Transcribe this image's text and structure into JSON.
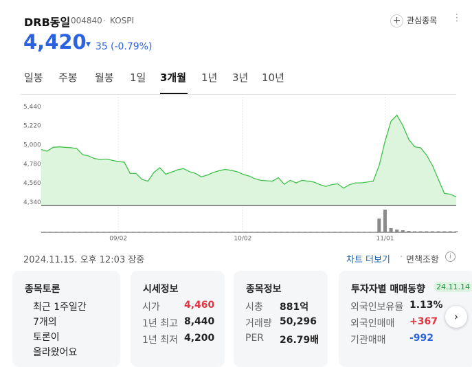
{
  "header": {
    "name": "DRB동일",
    "code": "004840",
    "market": "KOSPI",
    "watch": "관심종목",
    "price": "4,420",
    "change": "35",
    "change_pct": "(-0.79%)"
  },
  "tabs": [
    "일봉",
    "주봉",
    "월봉",
    "1일",
    "3개월",
    "1년",
    "3년",
    "10년"
  ],
  "chart_data": [
    {
      "type": "line",
      "color": "#3ec24a",
      "fill_color": "#dcf5dc",
      "categories": [
        null,
        null,
        null,
        null,
        null,
        null,
        null,
        null,
        null,
        null,
        null,
        null,
        null,
        "09/02",
        null,
        null,
        null,
        null,
        null,
        null,
        null,
        null,
        null,
        null,
        null,
        null,
        null,
        null,
        null,
        null,
        null,
        null,
        null,
        null,
        "10/02",
        null,
        null,
        null,
        null,
        null,
        null,
        null,
        null,
        null,
        null,
        null,
        null,
        null,
        null,
        null,
        null,
        null,
        null,
        null,
        null,
        null,
        null,
        null,
        "11/01",
        null,
        null,
        null,
        null,
        null,
        null,
        null,
        null,
        null,
        null,
        null,
        null
      ],
      "values": [
        4965,
        4945,
        4990,
        4995,
        4990,
        4985,
        4975,
        4905,
        4890,
        4860,
        4850,
        4855,
        4840,
        4825,
        4820,
        4690,
        4690,
        4620,
        4600,
        4700,
        4755,
        4680,
        4705,
        4730,
        4745,
        4710,
        4690,
        4650,
        4670,
        4700,
        4720,
        4735,
        4725,
        4710,
        4680,
        4660,
        4630,
        4610,
        4605,
        4600,
        4640,
        4565,
        4610,
        4580,
        4610,
        4600,
        4590,
        4560,
        4540,
        4560,
        4570,
        4520,
        4560,
        4580,
        4580,
        4590,
        4600,
        4780,
        5060,
        5290,
        5360,
        5240,
        5080,
        4995,
        4985,
        4900,
        4780,
        4620,
        4460,
        4450,
        4420
      ],
      "ylim": [
        4320,
        5570
      ],
      "yticks": [
        {
          "value": 4340,
          "label": "4,340"
        },
        {
          "value": 4560,
          "label": "4,560"
        },
        {
          "value": 4780,
          "label": "4,780"
        },
        {
          "value": 5000,
          "label": "5,000"
        },
        {
          "value": 5220,
          "label": "5,220"
        },
        {
          "value": 5440,
          "label": "5,440"
        }
      ]
    },
    {
      "type": "bar",
      "color": "#8a8a8a",
      "values": [
        0.3,
        0.3,
        0.3,
        0.3,
        0.3,
        0.3,
        0.3,
        0.3,
        0.3,
        0.3,
        0.3,
        0.3,
        0.3,
        0.3,
        0.3,
        0.3,
        0.3,
        0.3,
        0.3,
        0.3,
        0.3,
        0.3,
        0.3,
        0.3,
        0.3,
        0.3,
        0.3,
        0.3,
        0.3,
        0.3,
        0.3,
        0.3,
        0.3,
        0.3,
        0.3,
        0.3,
        0.3,
        0.3,
        0.3,
        0.3,
        0.3,
        0.3,
        0.3,
        0.3,
        0.3,
        0.3,
        0.3,
        0.3,
        0.3,
        0.3,
        0.3,
        0.3,
        0.3,
        0.3,
        0.3,
        0.3,
        0.3,
        20,
        33,
        6,
        4,
        3,
        2,
        1.5,
        1.5,
        1.5,
        1.5,
        1.5,
        1.5,
        1.5,
        1.5
      ],
      "ylim": [
        0,
        35
      ]
    }
  ],
  "footer": {
    "timestamp": "2024.11.15. 오후 12:03 장중",
    "more": "차트 더보기",
    "disclaimer": "면책조항"
  },
  "cards": [
    {
      "title": "종목토론",
      "lines": [
        "최근 1주일간",
        "7개의",
        "토론이",
        "올라왔어요"
      ]
    },
    {
      "title": "시세정보",
      "rows": [
        [
          "시가",
          "4,460"
        ],
        [
          "1년 최고",
          "8,440"
        ],
        [
          "1년 최저",
          "4,200"
        ]
      ]
    },
    {
      "title": "종목정보",
      "rows": [
        [
          "시총",
          "881억"
        ],
        [
          "거래량",
          "50,296"
        ],
        [
          "PER",
          "26.79배"
        ]
      ]
    },
    {
      "title": "투자자별 매매동향",
      "badge": "24.11.14",
      "rows": [
        [
          "외국인보유율",
          "1.13%"
        ],
        [
          "외국인매매",
          "+367"
        ],
        [
          "기관매매",
          "-992"
        ]
      ]
    }
  ]
}
